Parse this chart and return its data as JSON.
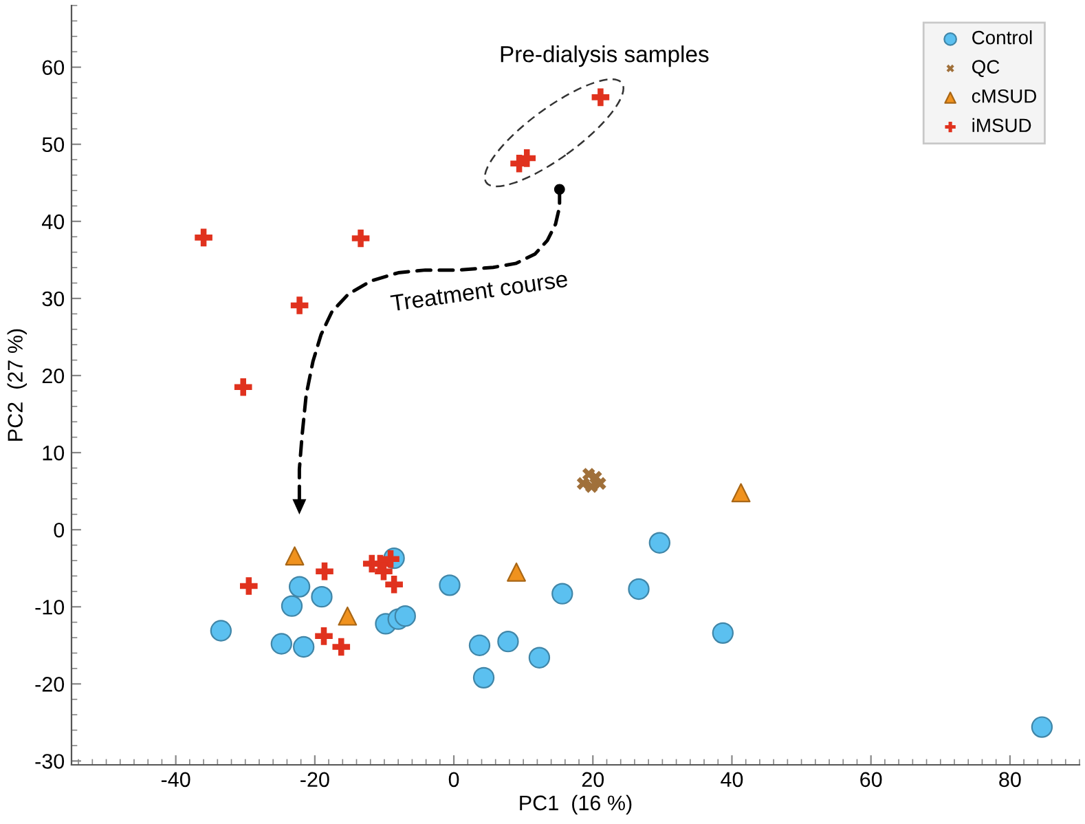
{
  "chart_data": {
    "type": "scatter",
    "xlabel": "PC1  (16 %)",
    "ylabel": "PC2  (27 %)",
    "xlim": [
      -55,
      90
    ],
    "ylim": [
      -30.5,
      68
    ],
    "xticks": [
      -40,
      -20,
      0,
      20,
      40,
      60,
      80
    ],
    "yticks": [
      -30,
      -20,
      -10,
      0,
      10,
      20,
      30,
      40,
      50,
      60
    ],
    "grid": false,
    "legend": "top right",
    "annotations": [
      "Pre-dialysis samples",
      "Treatment course"
    ],
    "series": [
      {
        "name": "Control",
        "color": "#5bc0f0",
        "marker": "circle",
        "x": [
          -33.5,
          -24.8,
          -21.6,
          -23.3,
          -22.2,
          -19.0,
          -8.6,
          -9.8,
          -8.0,
          -7.0,
          -0.6,
          3.7,
          4.3,
          7.8,
          12.3,
          15.6,
          26.6,
          29.6,
          38.7,
          84.6
        ],
        "values": [
          -13.1,
          -14.8,
          -15.2,
          -9.9,
          -7.4,
          -8.7,
          -3.7,
          -12.2,
          -11.6,
          -11.2,
          -7.2,
          -15.0,
          -19.2,
          -14.5,
          -16.6,
          -8.3,
          -7.7,
          -1.7,
          -13.4,
          -25.6
        ]
      },
      {
        "name": "QC",
        "color": "#a0703a",
        "marker": "cross",
        "x": [
          18.6,
          19.4,
          20.4,
          21.0,
          19.8
        ],
        "values": [
          6.0,
          7.2,
          6.8,
          6.0,
          5.6
        ]
      },
      {
        "name": "cMSUD",
        "color": "#f0921e",
        "marker": "triangle",
        "x": [
          -22.9,
          -15.3,
          9.0,
          41.3
        ],
        "values": [
          -3.4,
          -11.2,
          -5.5,
          4.8
        ]
      },
      {
        "name": "iMSUD",
        "color": "#e0321e",
        "marker": "plus",
        "x": [
          -36.0,
          -13.4,
          9.4,
          10.5,
          21.1,
          -22.2,
          -30.3,
          -29.5,
          -18.6,
          -11.8,
          -10.6,
          -10.1,
          -9.1,
          -8.6,
          -18.7,
          -16.2
        ],
        "values": [
          37.9,
          37.8,
          47.5,
          48.2,
          56.1,
          29.1,
          18.5,
          -7.3,
          -5.4,
          -4.4,
          -4.4,
          -5.4,
          -3.8,
          -7.1,
          -13.8,
          -15.2
        ]
      }
    ]
  }
}
